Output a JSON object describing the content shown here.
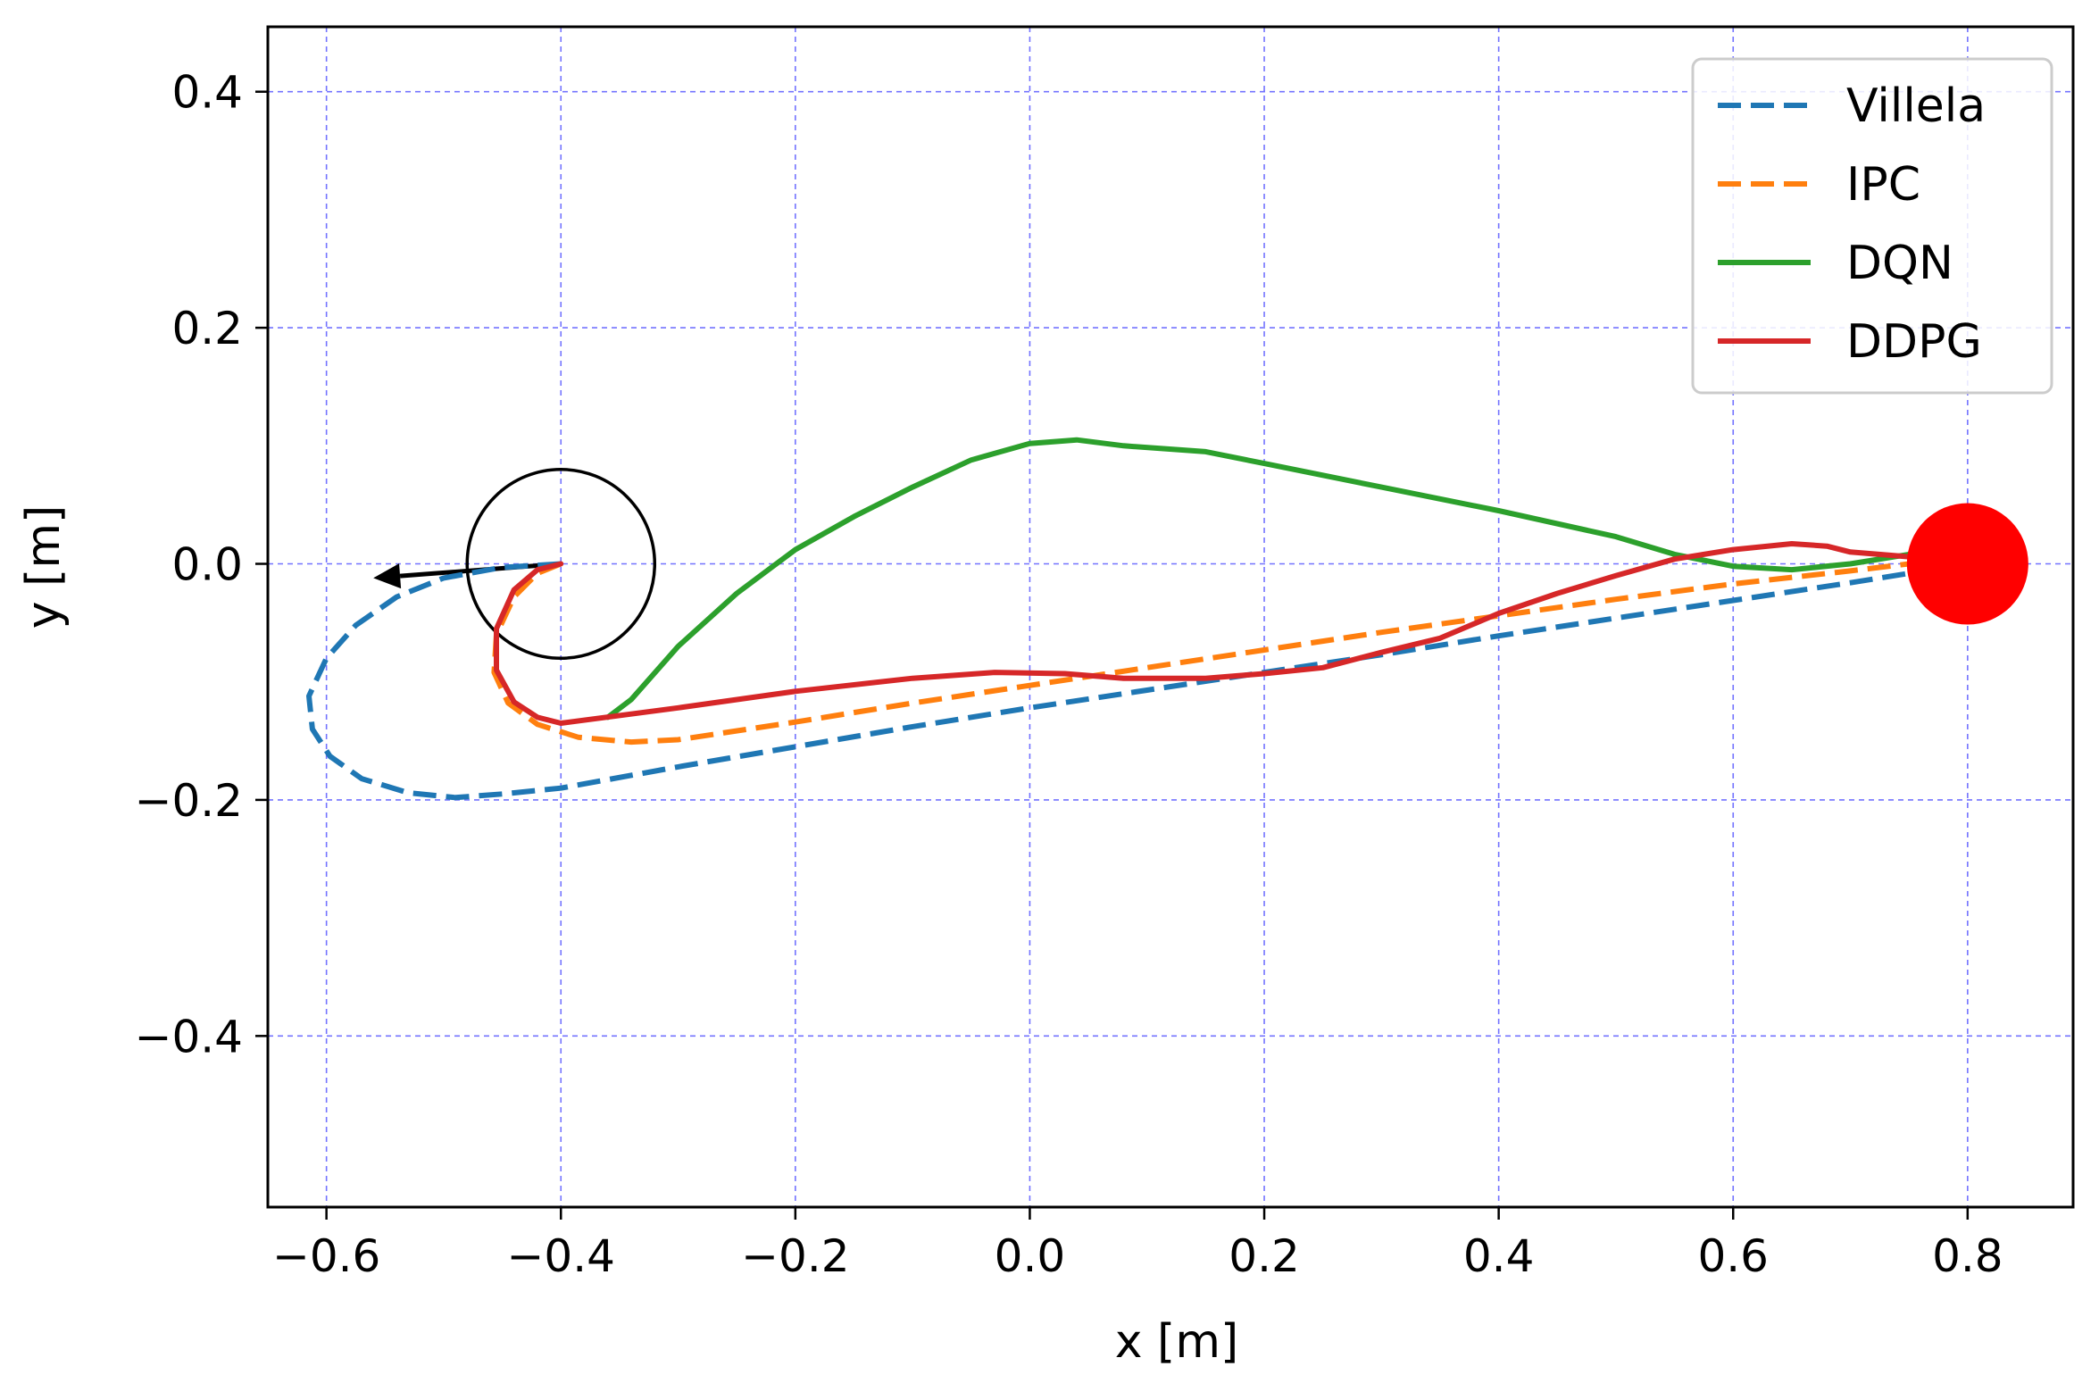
{
  "chart_data": {
    "type": "line",
    "xlabel": "x [m]",
    "ylabel": "y [m]",
    "xlim": [
      -0.65,
      0.89
    ],
    "ylim": [
      -0.545,
      0.455
    ],
    "xticks": [
      -0.6,
      -0.4,
      -0.2,
      0.0,
      0.2,
      0.4,
      0.6,
      0.8
    ],
    "xtick_labels": [
      "−0.6",
      "−0.4",
      "−0.2",
      "0.0",
      "0.2",
      "0.4",
      "0.6",
      "0.8"
    ],
    "yticks": [
      -0.4,
      -0.2,
      0.0,
      0.2,
      0.4
    ],
    "ytick_labels": [
      "−0.4",
      "−0.2",
      "0.0",
      "0.2",
      "0.4"
    ],
    "grid": true,
    "legend_position": "top-right",
    "series": [
      {
        "name": "Villela",
        "color": "#1f77b4",
        "style": "dashed",
        "points": [
          [
            -0.4,
            0.0
          ],
          [
            -0.45,
            -0.003
          ],
          [
            -0.5,
            -0.012
          ],
          [
            -0.54,
            -0.028
          ],
          [
            -0.575,
            -0.052
          ],
          [
            -0.6,
            -0.08
          ],
          [
            -0.615,
            -0.112
          ],
          [
            -0.612,
            -0.14
          ],
          [
            -0.597,
            -0.163
          ],
          [
            -0.57,
            -0.182
          ],
          [
            -0.53,
            -0.194
          ],
          [
            -0.49,
            -0.198
          ],
          [
            -0.45,
            -0.195
          ],
          [
            -0.4,
            -0.19
          ],
          [
            -0.3,
            -0.172
          ],
          [
            -0.2,
            -0.155
          ],
          [
            -0.1,
            -0.138
          ],
          [
            0.0,
            -0.122
          ],
          [
            0.1,
            -0.107
          ],
          [
            0.2,
            -0.092
          ],
          [
            0.3,
            -0.077
          ],
          [
            0.4,
            -0.061
          ],
          [
            0.5,
            -0.046
          ],
          [
            0.6,
            -0.031
          ],
          [
            0.7,
            -0.016
          ],
          [
            0.75,
            -0.008
          ]
        ]
      },
      {
        "name": "IPC",
        "color": "#ff7f0e",
        "style": "dashed",
        "points": [
          [
            -0.4,
            0.0
          ],
          [
            -0.42,
            -0.008
          ],
          [
            -0.44,
            -0.028
          ],
          [
            -0.455,
            -0.06
          ],
          [
            -0.457,
            -0.092
          ],
          [
            -0.445,
            -0.118
          ],
          [
            -0.42,
            -0.136
          ],
          [
            -0.385,
            -0.147
          ],
          [
            -0.34,
            -0.151
          ],
          [
            -0.3,
            -0.149
          ],
          [
            -0.2,
            -0.134
          ],
          [
            -0.1,
            -0.118
          ],
          [
            0.0,
            -0.103
          ],
          [
            0.1,
            -0.088
          ],
          [
            0.2,
            -0.073
          ],
          [
            0.3,
            -0.058
          ],
          [
            0.4,
            -0.044
          ],
          [
            0.5,
            -0.03
          ],
          [
            0.6,
            -0.017
          ],
          [
            0.7,
            -0.006
          ],
          [
            0.75,
            0.0
          ]
        ]
      },
      {
        "name": "DQN",
        "color": "#2ca02c",
        "style": "solid",
        "points": [
          [
            -0.36,
            -0.13
          ],
          [
            -0.34,
            -0.115
          ],
          [
            -0.3,
            -0.07
          ],
          [
            -0.25,
            -0.025
          ],
          [
            -0.2,
            0.012
          ],
          [
            -0.15,
            0.04
          ],
          [
            -0.1,
            0.065
          ],
          [
            -0.05,
            0.088
          ],
          [
            0.0,
            0.102
          ],
          [
            0.04,
            0.105
          ],
          [
            0.08,
            0.1
          ],
          [
            0.15,
            0.095
          ],
          [
            0.2,
            0.085
          ],
          [
            0.3,
            0.065
          ],
          [
            0.4,
            0.045
          ],
          [
            0.5,
            0.023
          ],
          [
            0.55,
            0.008
          ],
          [
            0.6,
            -0.002
          ],
          [
            0.65,
            -0.005
          ],
          [
            0.7,
            0.0
          ],
          [
            0.75,
            0.008
          ]
        ]
      },
      {
        "name": "DDPG",
        "color": "#d62728",
        "style": "solid",
        "points": [
          [
            -0.4,
            0.0
          ],
          [
            -0.42,
            -0.005
          ],
          [
            -0.44,
            -0.022
          ],
          [
            -0.455,
            -0.055
          ],
          [
            -0.455,
            -0.09
          ],
          [
            -0.44,
            -0.117
          ],
          [
            -0.42,
            -0.13
          ],
          [
            -0.4,
            -0.135
          ],
          [
            -0.3,
            -0.122
          ],
          [
            -0.2,
            -0.108
          ],
          [
            -0.1,
            -0.097
          ],
          [
            -0.03,
            -0.092
          ],
          [
            0.03,
            -0.093
          ],
          [
            0.08,
            -0.097
          ],
          [
            0.15,
            -0.097
          ],
          [
            0.2,
            -0.093
          ],
          [
            0.25,
            -0.088
          ],
          [
            0.3,
            -0.075
          ],
          [
            0.35,
            -0.063
          ],
          [
            0.4,
            -0.042
          ],
          [
            0.45,
            -0.025
          ],
          [
            0.5,
            -0.01
          ],
          [
            0.55,
            0.004
          ],
          [
            0.6,
            0.012
          ],
          [
            0.65,
            0.017
          ],
          [
            0.68,
            0.015
          ],
          [
            0.7,
            0.01
          ],
          [
            0.75,
            0.006
          ]
        ]
      }
    ],
    "annotations": {
      "start_circle": {
        "cx": -0.4,
        "cy": 0.0,
        "r": 0.08,
        "color": "#000000"
      },
      "heading_arrow": {
        "from": [
          -0.4,
          0.0
        ],
        "to": [
          -0.56,
          -0.012
        ],
        "color": "#000000"
      },
      "goal_marker": {
        "cx": 0.8,
        "cy": 0.0,
        "color": "#ff0000"
      }
    }
  }
}
